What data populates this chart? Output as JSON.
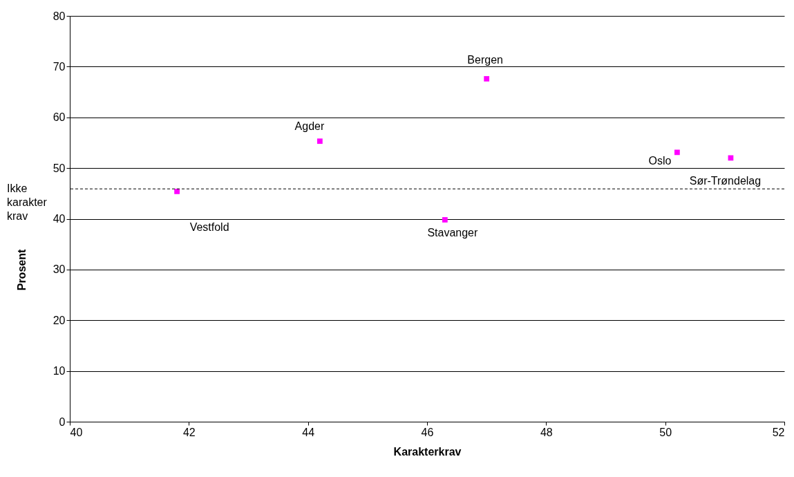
{
  "chart_data": {
    "type": "scatter",
    "xlabel": "Karakterkrav",
    "ylabel": "Prosent",
    "x": [
      41.8,
      44.2,
      46.3,
      47.0,
      50.2,
      51.1
    ],
    "series": [
      {
        "color": "#ff00ff",
        "values": [
          45.4,
          55.3,
          39.8,
          67.6,
          53.1,
          52.0
        ]
      }
    ],
    "xlim": [
      40,
      52
    ],
    "xticks": [
      40,
      42,
      44,
      46,
      48,
      50,
      52
    ],
    "ylim": [
      0,
      80
    ],
    "yticks": [
      0,
      10,
      20,
      30,
      40,
      50,
      60,
      70,
      80
    ],
    "grid": "y",
    "marker": "square",
    "legend": false,
    "ref_lines": [
      {
        "axis": "y",
        "value": 45.9,
        "label": "Ikke karakter krav",
        "color": "#000000",
        "line_style": "dashed"
      }
    ],
    "annotations": [
      {
        "text": "Vestfold",
        "x": 41.8,
        "y": 45.4
      },
      {
        "text": "Agder",
        "x": 44.2,
        "y": 55.3
      },
      {
        "text": "Stavanger",
        "x": 46.3,
        "y": 39.8
      },
      {
        "text": "Bergen",
        "x": 47.0,
        "y": 67.6
      },
      {
        "text": "Oslo",
        "x": 50.2,
        "y": 53.1
      },
      {
        "text": "Sør-Trøndelag",
        "x": 51.1,
        "y": 52.0
      }
    ]
  }
}
